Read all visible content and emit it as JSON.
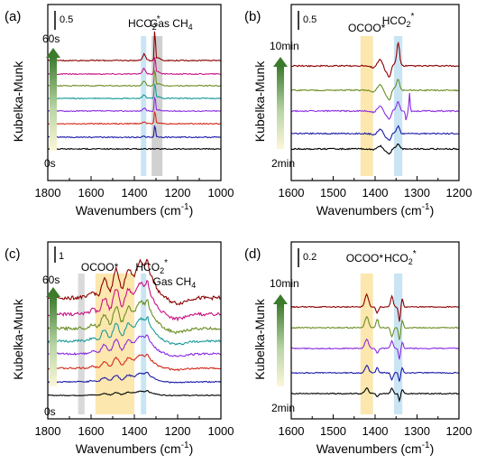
{
  "figure": {
    "shared": {
      "ylabel": "Kubelka-Munk",
      "xlabel_main": "Wavenumbers (cm",
      "xlabel_sup": "-1",
      "xlabel_tail": ")"
    },
    "series_colors": [
      "#000000",
      "#1a1aa8",
      "#d42a1a",
      "#8a2be2",
      "#1a9a9a",
      "#6b8e23",
      "#c71585",
      "#8b0000"
    ],
    "panels": [
      {
        "id": "a",
        "label": "(a)",
        "scale_text": "0.5",
        "time_top": "60s",
        "time_bottom": "0s",
        "annotations": [
          {
            "main": "HCO",
            "sub": "2",
            "sup": "*"
          },
          {
            "main": "Gas CH",
            "sub": "4",
            "sup": ""
          }
        ],
        "x_ticks": [
          "1800",
          "1600",
          "1400",
          "1200",
          "1000"
        ],
        "bands": [
          {
            "color": "#bfe0f2"
          },
          {
            "color": "#c8c8c8"
          }
        ]
      },
      {
        "id": "b",
        "label": "(b)",
        "scale_text": "0.5",
        "time_top": "10min",
        "time_bottom": "2min",
        "annotations": [
          {
            "main": "OCOO*",
            "sub": "",
            "sup": ""
          },
          {
            "main": "HCO",
            "sub": "2",
            "sup": "*"
          }
        ],
        "x_ticks": [
          "1600",
          "1500",
          "1400",
          "1300",
          "1200"
        ],
        "bands": [
          {
            "color": "#fbe3a0"
          },
          {
            "color": "#bfe0f2"
          }
        ]
      },
      {
        "id": "c",
        "label": "(c)",
        "scale_text": "1",
        "time_top": "60s",
        "time_bottom": "0s",
        "annotations": [
          {
            "main": "OCOO*",
            "sub": "",
            "sup": ""
          },
          {
            "main": "HCO",
            "sub": "2",
            "sup": "*"
          },
          {
            "main": "Gas CH",
            "sub": "4",
            "sup": ""
          }
        ],
        "x_ticks": [
          "1800",
          "1600",
          "1400",
          "1200",
          "1000"
        ],
        "bands": [
          {
            "color": "#d2d2d2"
          },
          {
            "color": "#fbe3a0"
          },
          {
            "color": "#bfe0f2"
          }
        ]
      },
      {
        "id": "d",
        "label": "(d)",
        "scale_text": "0.2",
        "time_top": "10min",
        "time_bottom": "2min",
        "annotations": [
          {
            "main": "OCOO*",
            "sub": "",
            "sup": ""
          },
          {
            "main": "HCO",
            "sub": "2",
            "sup": "*"
          }
        ],
        "x_ticks": [
          "1600",
          "1500",
          "1400",
          "1300",
          "1200"
        ],
        "bands": [
          {
            "color": "#fbe3a0"
          },
          {
            "color": "#bfe0f2"
          }
        ]
      }
    ]
  },
  "chart_data": [
    {
      "type": "line",
      "panel": "(a)",
      "title": "",
      "xlabel": "Wavenumbers (cm-1)",
      "ylabel": "Kubelka-Munk",
      "xlim": [
        1800,
        1000
      ],
      "x_reversed": true,
      "scale_bar": 0.5,
      "bands_cm1": [
        [
          1370,
          1345
        ],
        [
          1320,
          1270
        ]
      ],
      "series_count": 8,
      "time_range": [
        "0s",
        "60s"
      ],
      "features": [
        {
          "center_cm1": 1355,
          "label": "HCO2*",
          "type": "peak"
        },
        {
          "center_cm1": 1305,
          "label": "Gas CH4",
          "type": "sharp-peak"
        }
      ]
    },
    {
      "type": "line",
      "panel": "(b)",
      "title": "",
      "xlabel": "Wavenumbers (cm-1)",
      "ylabel": "Kubelka-Munk",
      "xlim": [
        1600,
        1200
      ],
      "x_reversed": true,
      "scale_bar": 0.5,
      "bands_cm1": [
        [
          1435,
          1405
        ],
        [
          1355,
          1335
        ]
      ],
      "series_count": 5,
      "time_range": [
        "2min",
        "10min"
      ],
      "features": [
        {
          "center_cm1": 1420,
          "label": "OCOO*",
          "type": "region"
        },
        {
          "center_cm1": 1345,
          "label": "HCO2*",
          "type": "peak"
        },
        {
          "center_cm1": 1318,
          "label": "",
          "type": "sharp-peak"
        }
      ]
    },
    {
      "type": "line",
      "panel": "(c)",
      "title": "",
      "xlabel": "Wavenumbers (cm-1)",
      "ylabel": "Kubelka-Munk",
      "xlim": [
        1800,
        1000
      ],
      "x_reversed": true,
      "scale_bar": 1,
      "bands_cm1": [
        [
          1660,
          1630
        ],
        [
          1580,
          1400
        ],
        [
          1370,
          1345
        ]
      ],
      "series_count": 8,
      "time_range": [
        "0s",
        "60s"
      ],
      "features": [
        {
          "center_cm1": 1490,
          "label": "OCOO*",
          "type": "broad-region"
        },
        {
          "center_cm1": 1355,
          "label": "HCO2*",
          "type": "peak"
        },
        {
          "center_cm1": 1305,
          "label": "Gas CH4",
          "type": "peak"
        }
      ]
    },
    {
      "type": "line",
      "panel": "(d)",
      "title": "",
      "xlabel": "Wavenumbers (cm-1)",
      "ylabel": "Kubelka-Munk",
      "xlim": [
        1600,
        1200
      ],
      "x_reversed": true,
      "scale_bar": 0.2,
      "bands_cm1": [
        [
          1435,
          1405
        ],
        [
          1355,
          1335
        ]
      ],
      "series_count": 5,
      "time_range": [
        "2min",
        "10min"
      ],
      "features": [
        {
          "center_cm1": 1420,
          "label": "OCOO*",
          "type": "peak"
        },
        {
          "center_cm1": 1345,
          "label": "HCO2*",
          "type": "peak"
        }
      ]
    }
  ]
}
